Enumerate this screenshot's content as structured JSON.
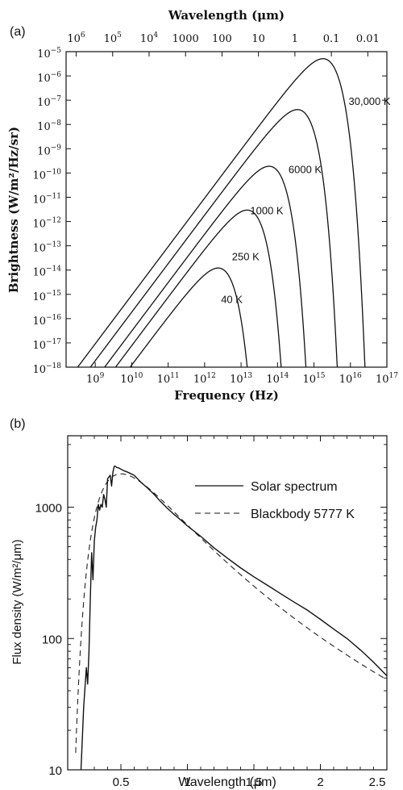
{
  "panel_labels": {
    "a": "(a)",
    "b": "(b)"
  },
  "chart_data": [
    {
      "type": "line",
      "panel": "(a)",
      "title": "",
      "xlabel": "Frequency (Hz)",
      "x2label": "Wavelength (μm)",
      "ylabel": "Brightness (W/m²/Hz/sr)",
      "xscale": "log",
      "yscale": "log",
      "xlim_exp": [
        8.2,
        17
      ],
      "ylim_exp": [
        -18,
        -5
      ],
      "x_ticks": [
        {
          "exp": 9,
          "base": "10",
          "sup": "9"
        },
        {
          "exp": 10,
          "base": "10",
          "sup": "10"
        },
        {
          "exp": 11,
          "base": "10",
          "sup": "11"
        },
        {
          "exp": 12,
          "base": "10",
          "sup": "12"
        },
        {
          "exp": 13,
          "base": "10",
          "sup": "13"
        },
        {
          "exp": 14,
          "base": "10",
          "sup": "14"
        },
        {
          "exp": 15,
          "base": "10",
          "sup": "15"
        },
        {
          "exp": 16,
          "base": "10",
          "sup": "16"
        },
        {
          "exp": 17,
          "base": "10",
          "sup": "17"
        }
      ],
      "x2_ticks": [
        {
          "freq_exp": 8.477,
          "text": "10",
          "sup": "6"
        },
        {
          "freq_exp": 9.477,
          "text": "10",
          "sup": "5"
        },
        {
          "freq_exp": 10.477,
          "text": "10",
          "sup": "4"
        },
        {
          "freq_exp": 11.477,
          "text": "1000",
          "sup": ""
        },
        {
          "freq_exp": 12.477,
          "text": "100",
          "sup": ""
        },
        {
          "freq_exp": 13.477,
          "text": "10",
          "sup": ""
        },
        {
          "freq_exp": 14.477,
          "text": "1",
          "sup": ""
        },
        {
          "freq_exp": 15.477,
          "text": "0.1",
          "sup": ""
        },
        {
          "freq_exp": 16.477,
          "text": "0.01",
          "sup": ""
        }
      ],
      "y_ticks": [
        {
          "exp": -5,
          "base": "10",
          "sup": "−5"
        },
        {
          "exp": -6,
          "base": "10",
          "sup": "−6"
        },
        {
          "exp": -7,
          "base": "10",
          "sup": "−7"
        },
        {
          "exp": -8,
          "base": "10",
          "sup": "−8"
        },
        {
          "exp": -9,
          "base": "10",
          "sup": "−9"
        },
        {
          "exp": -10,
          "base": "10",
          "sup": "−10"
        },
        {
          "exp": -11,
          "base": "10",
          "sup": "−11"
        },
        {
          "exp": -12,
          "base": "10",
          "sup": "−12"
        },
        {
          "exp": -13,
          "base": "10",
          "sup": "−13"
        },
        {
          "exp": -14,
          "base": "10",
          "sup": "−14"
        },
        {
          "exp": -15,
          "base": "10",
          "sup": "−15"
        },
        {
          "exp": -16,
          "base": "10",
          "sup": "−16"
        },
        {
          "exp": -17,
          "base": "10",
          "sup": "−17"
        },
        {
          "exp": -18,
          "base": "10",
          "sup": "−18"
        }
      ],
      "series": [
        {
          "temperature_K": 40,
          "label": "40 K",
          "label_pos": [
            12.45,
            -15.35
          ]
        },
        {
          "temperature_K": 250,
          "label": "250 K",
          "label_pos": [
            12.75,
            -13.6
          ]
        },
        {
          "temperature_K": 1000,
          "label": "1000 K",
          "label_pos": [
            13.25,
            -11.7
          ]
        },
        {
          "temperature_K": 6000,
          "label": "6000 K",
          "label_pos": [
            14.3,
            -10
          ]
        },
        {
          "temperature_K": 30000,
          "label": "30,000 K",
          "label_pos": [
            15.95,
            -7.2
          ]
        }
      ]
    },
    {
      "type": "line",
      "panel": "(b)",
      "title": "",
      "xlabel": "Wavelength (μm)",
      "ylabel": "Flux density (W/m²/μm)",
      "xscale": "linear",
      "yscale": "log",
      "xlim": [
        0.1,
        2.5
      ],
      "ylim": [
        10,
        3500
      ],
      "x_ticks": [
        0.5,
        1,
        1.5,
        2,
        2.5
      ],
      "x_tick_labels": [
        "0.5",
        "1",
        "1.5",
        "2",
        "2.5"
      ],
      "y_ticks": [
        10,
        100,
        1000
      ],
      "y_tick_labels": [
        "10",
        "100",
        "1000"
      ],
      "legend_position": "top-right",
      "series": [
        {
          "name": "Solar spectrum",
          "style": "solid",
          "x": [
            0.2,
            0.22,
            0.24,
            0.25,
            0.26,
            0.27,
            0.28,
            0.29,
            0.3,
            0.31,
            0.32,
            0.33,
            0.34,
            0.35,
            0.36,
            0.37,
            0.38,
            0.39,
            0.4,
            0.41,
            0.42,
            0.43,
            0.44,
            0.45,
            0.46,
            0.47,
            0.48,
            0.5,
            0.52,
            0.55,
            0.6,
            0.65,
            0.7,
            0.75,
            0.8,
            0.85,
            0.9,
            0.95,
            1.0,
            1.1,
            1.2,
            1.3,
            1.4,
            1.5,
            1.6,
            1.7,
            1.8,
            1.9,
            2.0,
            2.1,
            2.2,
            2.3,
            2.4,
            2.5
          ],
          "y": [
            10,
            30,
            60,
            45,
            80,
            200,
            450,
            280,
            550,
            700,
            800,
            1050,
            950,
            1050,
            1000,
            1250,
            1150,
            1000,
            1650,
            1700,
            1750,
            1450,
            1850,
            2050,
            2050,
            2000,
            2000,
            1950,
            1900,
            1850,
            1750,
            1550,
            1400,
            1250,
            1100,
            980,
            880,
            800,
            720,
            600,
            490,
            410,
            345,
            295,
            255,
            220,
            190,
            165,
            140,
            118,
            100,
            82,
            66,
            52
          ]
        },
        {
          "name": "Blackbody 5777 K",
          "style": "dashed",
          "temperature_K": 5777
        }
      ]
    }
  ]
}
